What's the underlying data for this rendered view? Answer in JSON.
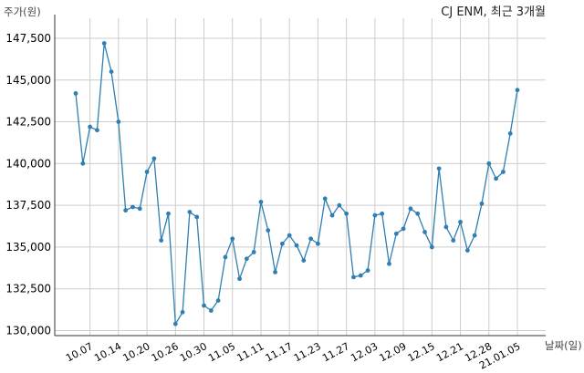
{
  "chart_data": {
    "type": "line",
    "title": "CJ ENM, 최근 3개월",
    "ylabel": "주가(원)",
    "xlabel": "날짜(일)",
    "ylim": [
      129700,
      148700
    ],
    "yticks": [
      130000,
      132500,
      135000,
      137500,
      140000,
      142500,
      145000,
      147500
    ],
    "ytick_labels": [
      "130,000",
      "132,500",
      "135,000",
      "137,500",
      "140,000",
      "142,500",
      "145,000",
      "147,500"
    ],
    "xticks": [
      {
        "index": 2,
        "label": "10.07"
      },
      {
        "index": 6,
        "label": "10.14"
      },
      {
        "index": 10,
        "label": "10.20"
      },
      {
        "index": 14,
        "label": "10.26"
      },
      {
        "index": 18,
        "label": "10.30"
      },
      {
        "index": 22,
        "label": "11.05"
      },
      {
        "index": 26,
        "label": "11.11"
      },
      {
        "index": 30,
        "label": "11.17"
      },
      {
        "index": 34,
        "label": "11.23"
      },
      {
        "index": 38,
        "label": "11.27"
      },
      {
        "index": 42,
        "label": "12.03"
      },
      {
        "index": 46,
        "label": "12.09"
      },
      {
        "index": 50,
        "label": "12.15"
      },
      {
        "index": 54,
        "label": "12.21"
      },
      {
        "index": 58,
        "label": "12.28"
      },
      {
        "index": 62,
        "label": "21.01.05"
      }
    ],
    "grid": true,
    "series": [
      {
        "color": "#2f7fb2",
        "values": [
          144200,
          140000,
          142200,
          142000,
          147200,
          145500,
          142500,
          137200,
          137400,
          137300,
          139500,
          140300,
          135400,
          137000,
          130400,
          131100,
          137100,
          136800,
          131500,
          131200,
          131800,
          134400,
          135500,
          133100,
          134300,
          134700,
          137700,
          136000,
          133500,
          135200,
          135700,
          135100,
          134200,
          135500,
          135200,
          137900,
          136900,
          137500,
          137000,
          133200,
          133300,
          133600,
          136900,
          137000,
          134000,
          135800,
          136100,
          137300,
          137000,
          135900,
          135000,
          139700,
          136200,
          135400,
          136500,
          134800,
          135700,
          137600,
          140000,
          139100,
          139500,
          141800,
          144400
        ]
      }
    ]
  }
}
